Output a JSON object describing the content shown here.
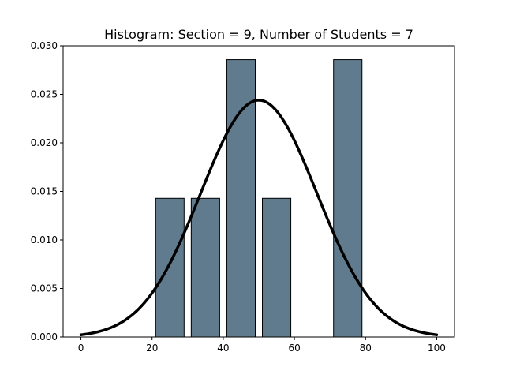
{
  "chart_data": {
    "type": "bar",
    "title": "Histogram: Section = 9,  Number of Students = 7",
    "xlabel": "",
    "ylabel": "",
    "bins": [
      {
        "start": 0,
        "end": 10,
        "density": 0.0
      },
      {
        "start": 10,
        "end": 20,
        "density": 0.0
      },
      {
        "start": 20,
        "end": 30,
        "density": 0.0142857
      },
      {
        "start": 30,
        "end": 40,
        "density": 0.0142857
      },
      {
        "start": 40,
        "end": 50,
        "density": 0.0285714
      },
      {
        "start": 50,
        "end": 60,
        "density": 0.0142857
      },
      {
        "start": 60,
        "end": 70,
        "density": 0.0
      },
      {
        "start": 70,
        "end": 80,
        "density": 0.0285714
      },
      {
        "start": 80,
        "end": 90,
        "density": 0.0
      },
      {
        "start": 90,
        "end": 100,
        "density": 0.0
      }
    ],
    "normal_curve": {
      "mean": 50,
      "std": 16.35,
      "x_range": [
        0,
        100
      ]
    },
    "xlim": [
      -5,
      105
    ],
    "ylim": [
      0,
      0.03
    ],
    "x_ticks": [
      "0",
      "20",
      "40",
      "60",
      "80",
      "100"
    ],
    "x_tick_values": [
      0,
      20,
      40,
      60,
      80,
      100
    ],
    "y_ticks": [
      "0.000",
      "0.005",
      "0.010",
      "0.015",
      "0.020",
      "0.025",
      "0.030"
    ],
    "y_tick_values": [
      0,
      0.005,
      0.01,
      0.015,
      0.02,
      0.025,
      0.03
    ],
    "grid": false,
    "legend": "none",
    "colors": {
      "bar": "#607b8d",
      "bar_edge": "#000000",
      "curve": "#000000"
    }
  }
}
